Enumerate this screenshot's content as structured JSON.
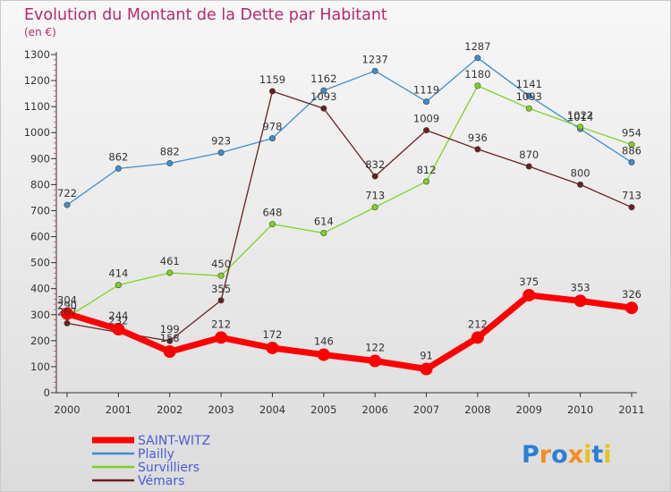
{
  "chart_data": {
    "type": "line",
    "title": "Evolution du Montant de la Dette par Habitant",
    "subtitle": "(en €)",
    "x": [
      "2000",
      "2001",
      "2002",
      "2003",
      "2004",
      "2005",
      "2006",
      "2007",
      "2008",
      "2009",
      "2010",
      "2011"
    ],
    "ylim": [
      0,
      1300
    ],
    "yticks": [
      "0",
      "100",
      "200",
      "300",
      "400",
      "500",
      "600",
      "700",
      "800",
      "900",
      "1000",
      "1100",
      "1200",
      "1300"
    ],
    "grid": false,
    "legend_position": "bottom-left",
    "series": [
      {
        "name": "SAINT-WITZ",
        "color": "#ff0000",
        "values": [
          304,
          244,
          158,
          212,
          172,
          146,
          122,
          91,
          212,
          375,
          353,
          326
        ]
      },
      {
        "name": "Plailly",
        "color": "#3d8ecf",
        "values": [
          722,
          862,
          882,
          923,
          978,
          1162,
          1237,
          1119,
          1287,
          1141,
          1014,
          886
        ]
      },
      {
        "name": "Survilliers",
        "color": "#7ed321",
        "values": [
          290,
          414,
          461,
          450,
          648,
          614,
          713,
          812,
          1180,
          1093,
          1022,
          954
        ]
      },
      {
        "name": "Vémars",
        "color": "#6b1f1f",
        "values": [
          267,
          232,
          199,
          355,
          1159,
          1093,
          832,
          1009,
          936,
          870,
          800,
          713
        ]
      }
    ]
  },
  "logo": {
    "text": "Proxiti"
  }
}
